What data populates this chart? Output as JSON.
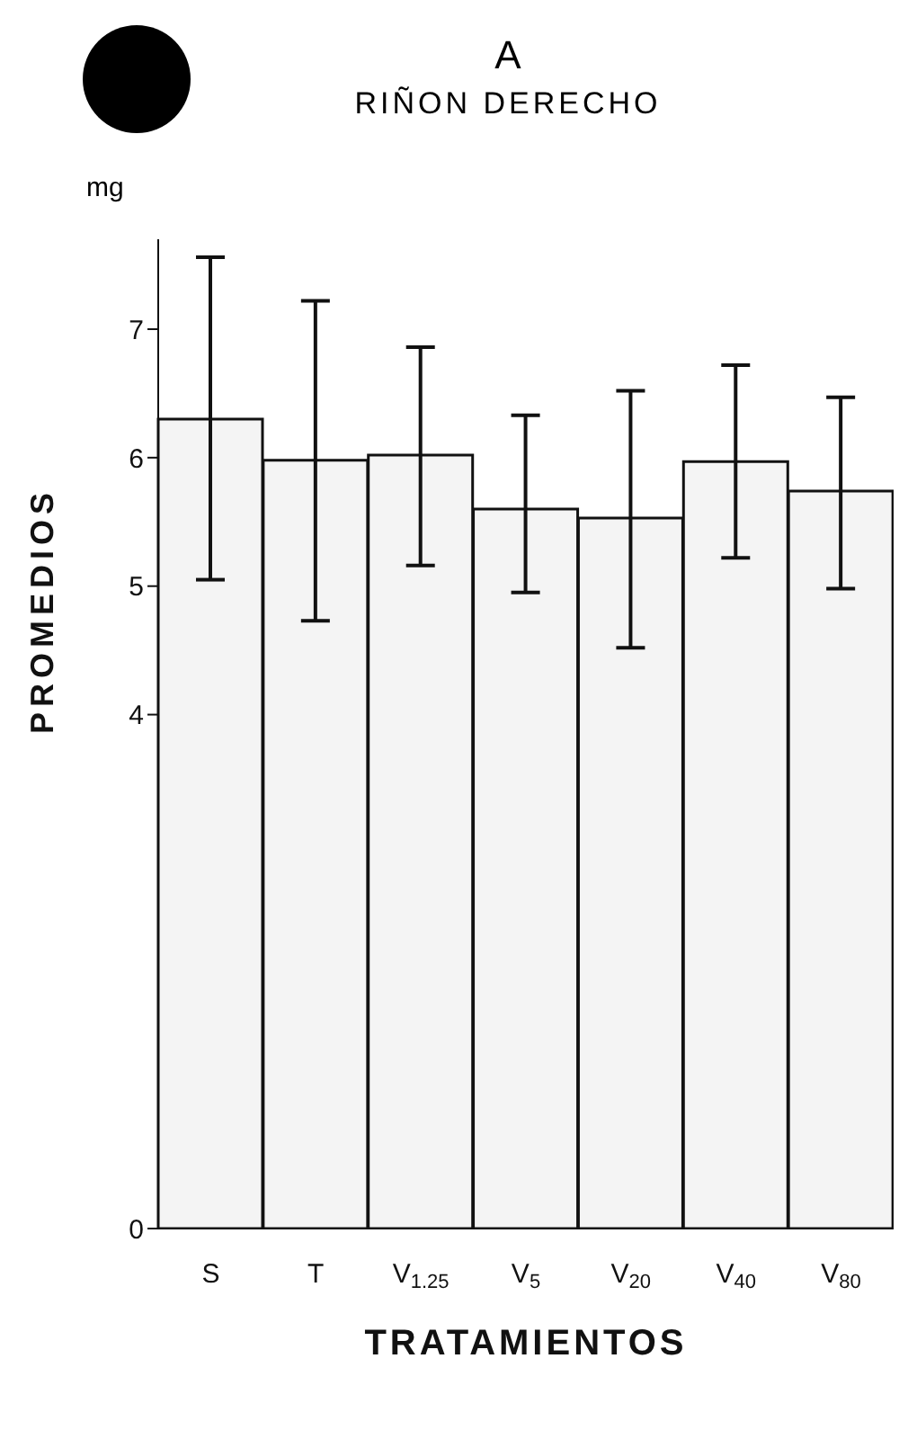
{
  "chart_data": {
    "type": "bar",
    "title": "A",
    "subtitle": "RIÑON DERECHO",
    "xlabel": "TRATAMIENTOS",
    "ylabel": "PROMEDIOS",
    "annotations": [
      "mg"
    ],
    "categories": [
      "S",
      "T",
      "V$_{1.25}$",
      "V$_{5}$",
      "V$_{20}$",
      "V$_{40}$",
      "V$_{80}$"
    ],
    "values": [
      6.3,
      5.98,
      6.02,
      5.6,
      5.53,
      5.97,
      5.74
    ],
    "errors": [
      [
        5.05,
        7.56
      ],
      [
        4.73,
        7.22
      ],
      [
        5.16,
        6.86
      ],
      [
        4.95,
        6.33
      ],
      [
        4.52,
        6.52
      ],
      [
        5.22,
        6.72
      ],
      [
        4.98,
        6.47
      ]
    ],
    "color": "#f4f4f4",
    "ylim": [
      0,
      7.7
    ],
    "yticks": [
      0,
      4,
      5,
      6,
      7
    ],
    "grid": false
  }
}
